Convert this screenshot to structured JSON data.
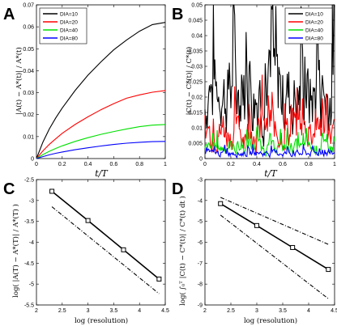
{
  "chart_data": [
    {
      "panel": "A",
      "type": "line",
      "xlabel": "t/T",
      "ylabel": "|A(t) − A*(t)| / A*(t)",
      "xlim": [
        0,
        1
      ],
      "ylim": [
        0,
        0.07
      ],
      "xticks": [
        "0",
        "0.2",
        "0.4",
        "0.6",
        "0.8",
        "1"
      ],
      "yticks": [
        "0",
        "0.01",
        "0.02",
        "0.03",
        "0.04",
        "0.05",
        "0.06",
        "0.07"
      ],
      "legend": "top-left",
      "series": [
        {
          "name": "DIA=10",
          "color": "#000000",
          "x": [
            0,
            0.05,
            0.1,
            0.15,
            0.2,
            0.3,
            0.4,
            0.5,
            0.6,
            0.7,
            0.8,
            0.9,
            1.0
          ],
          "y": [
            0,
            0.0075,
            0.0135,
            0.0185,
            0.023,
            0.031,
            0.038,
            0.044,
            0.0495,
            0.054,
            0.058,
            0.061,
            0.062
          ]
        },
        {
          "name": "DIA=20",
          "color": "#ff0000",
          "x": [
            0,
            0.05,
            0.1,
            0.15,
            0.2,
            0.3,
            0.4,
            0.5,
            0.6,
            0.7,
            0.8,
            0.9,
            1.0
          ],
          "y": [
            0,
            0.0035,
            0.0065,
            0.009,
            0.0115,
            0.0155,
            0.019,
            0.0222,
            0.025,
            0.0275,
            0.029,
            0.0302,
            0.031
          ]
        },
        {
          "name": "DIA=40",
          "color": "#00e000",
          "x": [
            0,
            0.05,
            0.1,
            0.15,
            0.2,
            0.3,
            0.4,
            0.5,
            0.6,
            0.7,
            0.8,
            0.9,
            1.0
          ],
          "y": [
            0,
            0.0018,
            0.0033,
            0.0046,
            0.0058,
            0.0078,
            0.0095,
            0.011,
            0.0123,
            0.0135,
            0.0145,
            0.0152,
            0.0155
          ]
        },
        {
          "name": "DIA=80",
          "color": "#0000ff",
          "x": [
            0,
            0.05,
            0.1,
            0.15,
            0.2,
            0.3,
            0.4,
            0.5,
            0.6,
            0.7,
            0.8,
            0.9,
            1.0
          ],
          "y": [
            0,
            0.0009,
            0.0017,
            0.0024,
            0.003,
            0.004,
            0.0049,
            0.0057,
            0.0064,
            0.007,
            0.0074,
            0.0077,
            0.0078
          ]
        }
      ]
    },
    {
      "panel": "B",
      "type": "line",
      "xlabel": "t/T",
      "ylabel": "|C(t) − C*(t)| / C*(t)",
      "xlim": [
        0,
        1
      ],
      "ylim": [
        0,
        0.05
      ],
      "xticks": [
        "0",
        "0.2",
        "0.4",
        "0.6",
        "0.8",
        "1"
      ],
      "yticks": [
        "0",
        "0.005",
        "0.01",
        "0.015",
        "0.02",
        "0.025",
        "0.03",
        "0.035",
        "0.04",
        "0.045",
        "0.05"
      ],
      "legend": "top-right",
      "series": [
        {
          "name": "DIA=10",
          "color": "#000000",
          "amplitude": 0.048,
          "baseline": 0.012
        },
        {
          "name": "DIA=20",
          "color": "#ff0000",
          "amplitude": 0.02,
          "baseline": 0.006
        },
        {
          "name": "DIA=40",
          "color": "#00e000",
          "amplitude": 0.008,
          "baseline": 0.003
        },
        {
          "name": "DIA=80",
          "color": "#0000ff",
          "amplitude": 0.004,
          "baseline": 0.0015
        }
      ]
    },
    {
      "panel": "C",
      "type": "line",
      "xlabel": "log (resolution)",
      "ylabel": "log( |A(T) − A*(T)| / A*(T) )",
      "xlim": [
        2,
        4.5
      ],
      "ylim": [
        -5.5,
        -2.5
      ],
      "xticks": [
        "2",
        "2.5",
        "3",
        "3.5",
        "4",
        "4.5"
      ],
      "yticks": [
        "-5.5",
        "-5",
        "-4.5",
        "-4",
        "-3.5",
        "-3",
        "-2.5"
      ],
      "series": [
        {
          "name": "",
          "style": "solid-square",
          "x": [
            2.3,
            3.0,
            3.69,
            4.38
          ],
          "y": [
            -2.78,
            -3.48,
            -4.18,
            -4.88
          ]
        },
        {
          "name": "",
          "style": "dashdot",
          "x": [
            2.3,
            4.38
          ],
          "y": [
            -3.15,
            -5.23
          ]
        }
      ]
    },
    {
      "panel": "D",
      "type": "line",
      "xlabel": "log (resolution)",
      "ylabel": "log( ∫₀ᵀ |C(t) − C*(t)| / C*(t) dt )",
      "xlim": [
        2,
        4.5
      ],
      "ylim": [
        -9,
        -3
      ],
      "xticks": [
        "2",
        "2.5",
        "3",
        "3.5",
        "4",
        "4.5"
      ],
      "yticks": [
        "-9",
        "-8",
        "-7",
        "-6",
        "-5",
        "-4",
        "-3"
      ],
      "series": [
        {
          "name": "",
          "style": "solid-square",
          "x": [
            2.3,
            3.0,
            3.69,
            4.38
          ],
          "y": [
            -4.15,
            -5.2,
            -6.25,
            -7.3
          ]
        },
        {
          "name": "",
          "style": "dashdot",
          "x": [
            2.3,
            4.38
          ],
          "y": [
            -3.85,
            -6.1
          ]
        },
        {
          "name": "",
          "style": "dashdot",
          "x": [
            2.3,
            4.38
          ],
          "y": [
            -4.7,
            -8.7
          ]
        }
      ]
    }
  ]
}
